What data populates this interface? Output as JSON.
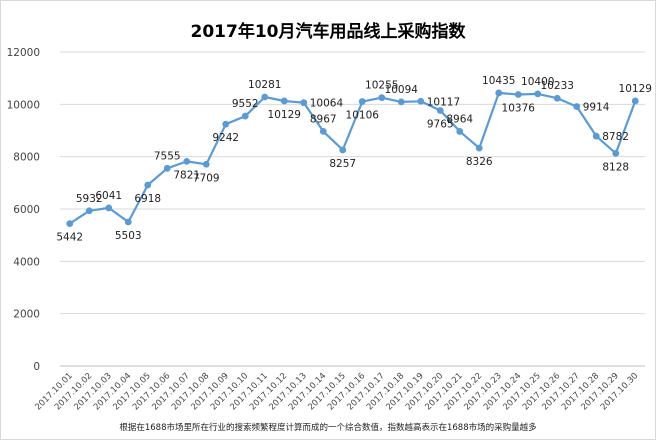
{
  "chart_data": {
    "type": "line",
    "title": "2017年10月汽车用品线上采购指数",
    "footnote": "根据在1688市场里所在行业的搜索频繁程度计算而成的一个综合数值，指数越高表示在1688市场的采购量越多",
    "xlabel": "",
    "ylabel": "",
    "ylim": [
      0,
      12000
    ],
    "yticks": [
      0,
      2000,
      4000,
      6000,
      8000,
      10000,
      12000
    ],
    "grid": "horizontal",
    "legend": "none",
    "line_color": "#5b9bd5",
    "categories": [
      "2017.10.01",
      "2017.10.02",
      "2017.10.03",
      "2017.10.04",
      "2017.10.05",
      "2017.10.06",
      "2017.10.07",
      "2017.10.08",
      "2017.10.09",
      "2017.10.10",
      "2017.10.11",
      "2017.10.12",
      "2017.10.13",
      "2017.10.14",
      "2017.10.15",
      "2017.10.16",
      "2017.10.17",
      "2017.10.18",
      "2017.10.19",
      "2017.10.20",
      "2017.10.21",
      "2017.10.22",
      "2017.10.23",
      "2017.10.24",
      "2017.10.25",
      "2017.10.26",
      "2017.10.27",
      "2017.10.28",
      "2017.10.29",
      "2017.10.30"
    ],
    "series": [
      {
        "values": [
          5442,
          5932,
          6041,
          5503,
          6918,
          7555,
          7821,
          7709,
          9242,
          9552,
          10281,
          10129,
          10064,
          8967,
          8257,
          10106,
          10255,
          10094,
          10117,
          9765,
          8964,
          8326,
          10435,
          10376,
          10400,
          10233,
          9914,
          8782,
          8128,
          10129
        ]
      }
    ],
    "label_positions": [
      "below",
      "above",
      "above",
      "below",
      "below",
      "above",
      "below",
      "below",
      "below",
      "above",
      "above",
      "below",
      "right",
      "above",
      "below",
      "below",
      "above",
      "above",
      "right",
      "below",
      "above",
      "below",
      "above",
      "below",
      "above",
      "above",
      "right",
      "right",
      "below",
      "above"
    ]
  }
}
